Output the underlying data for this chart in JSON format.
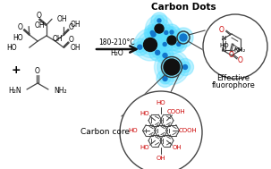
{
  "title": "Carbon Dots",
  "background_color": "#ffffff",
  "dot_color": "#111111",
  "glow_color": "#55ddff",
  "blue_dot_color": "#1177cc",
  "bond_color": "#444444",
  "red_color": "#cc0000",
  "figsize": [
    3.03,
    1.89
  ],
  "dpi": 100,
  "arrow_text1": "180-210°C",
  "arrow_text2": "H₂O",
  "label_carbon_dots": "Carbon Dots",
  "label_effective1": "Effective",
  "label_effective2": "fluorophore",
  "label_carbon_core": "Carbon core"
}
